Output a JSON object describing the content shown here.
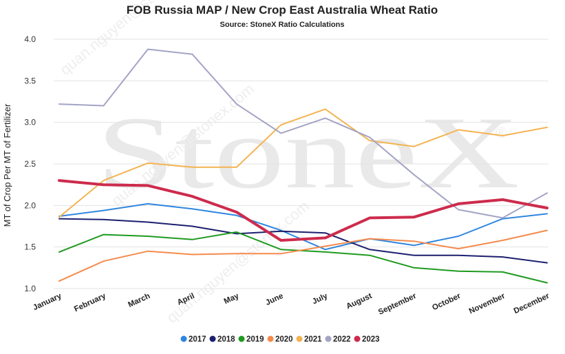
{
  "watermark": {
    "brand": "StoneX",
    "registered": "®",
    "email": "quan.nguyen@stonex.com"
  },
  "chart_data": {
    "type": "line",
    "title": "FOB Russia MAP / New Crop East Australia Wheat Ratio",
    "subtitle": "Source: StoneX Ratio Calculations",
    "xlabel": "",
    "ylabel": "MT of Crop Per MT of Fertilizer",
    "ylim": [
      1.0,
      4.0
    ],
    "yticks": [
      "1.0",
      "1.5",
      "2.0",
      "2.5",
      "3.0",
      "3.5",
      "4.0"
    ],
    "grid": true,
    "legend_position": "bottom",
    "categories": [
      "January",
      "February",
      "March",
      "April",
      "May",
      "June",
      "July",
      "August",
      "September",
      "October",
      "November",
      "December"
    ],
    "series": [
      {
        "name": "2017",
        "color": "#2f86e0",
        "width": 2,
        "values": [
          1.87,
          1.94,
          2.02,
          1.96,
          1.88,
          1.7,
          1.47,
          1.6,
          1.52,
          1.63,
          1.84,
          1.9
        ]
      },
      {
        "name": "2018",
        "color": "#1c1f6e",
        "width": 2,
        "values": [
          1.84,
          1.83,
          1.8,
          1.75,
          1.66,
          1.69,
          1.67,
          1.47,
          1.4,
          1.4,
          1.38,
          1.31
        ]
      },
      {
        "name": "2019",
        "color": "#1e9a1e",
        "width": 2,
        "values": [
          1.44,
          1.65,
          1.63,
          1.59,
          1.68,
          1.47,
          1.44,
          1.4,
          1.25,
          1.21,
          1.2,
          1.07
        ]
      },
      {
        "name": "2020",
        "color": "#f58a4c",
        "width": 2,
        "values": [
          1.09,
          1.33,
          1.45,
          1.41,
          1.42,
          1.42,
          1.51,
          1.6,
          1.57,
          1.48,
          1.58,
          1.7
        ]
      },
      {
        "name": "2021",
        "color": "#f4b350",
        "width": 2,
        "values": [
          1.86,
          2.3,
          2.51,
          2.46,
          2.46,
          2.97,
          3.16,
          2.78,
          2.71,
          2.91,
          2.84,
          2.94
        ]
      },
      {
        "name": "2022",
        "color": "#a3a3c5",
        "width": 2,
        "values": [
          3.22,
          3.2,
          3.88,
          3.82,
          3.22,
          2.87,
          3.05,
          2.82,
          2.37,
          1.95,
          1.85,
          2.15
        ]
      },
      {
        "name": "2023",
        "color": "#cd2b4c",
        "width": 4,
        "values": [
          2.3,
          2.25,
          2.24,
          2.11,
          1.92,
          1.58,
          1.61,
          1.85,
          1.86,
          2.02,
          2.07,
          1.97
        ]
      }
    ]
  }
}
